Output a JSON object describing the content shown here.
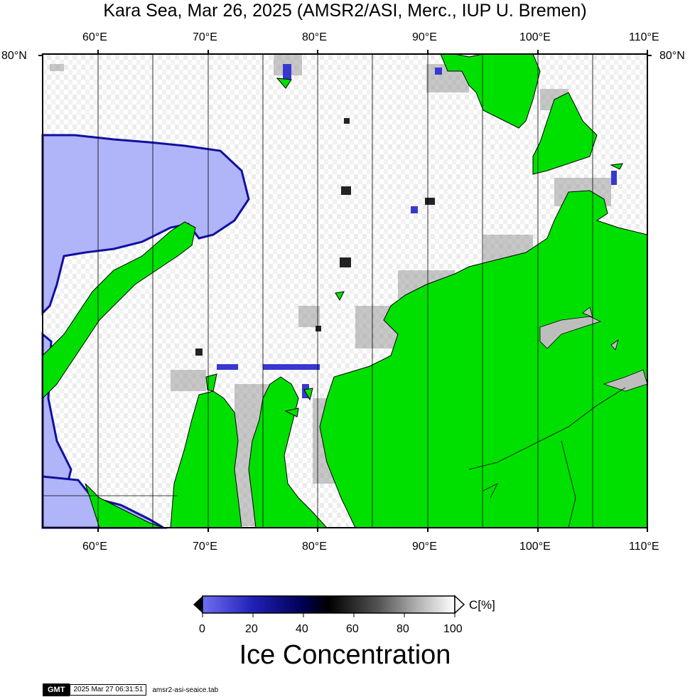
{
  "title": "Kara Sea, Mar 26, 2025 (AMSR2/ASI, Merc., IUP U. Bremen)",
  "map": {
    "lon_ticks": [
      "60°E",
      "70°E",
      "80°E",
      "90°E",
      "100°E",
      "110°E"
    ],
    "lat_label_left": "80°N",
    "lat_label_right": "80°N",
    "extent": {
      "lon": [
        55,
        110
      ],
      "lat_top": 80
    },
    "colors": {
      "open_water": "#b0b4f8",
      "land": "#00e000",
      "ice_full": "#ffffff",
      "gridline": "#000000"
    }
  },
  "colorbar": {
    "unit": "C[%]",
    "ticks": [
      "0",
      "20",
      "40",
      "60",
      "80",
      "100"
    ],
    "title": "Ice Concentration",
    "stops": [
      "#6f6ff0",
      "#2020b8",
      "#000050",
      "#000000",
      "#555555",
      "#b0b0b0",
      "#ffffff"
    ]
  },
  "footer": {
    "logo": "GMT",
    "timestamp": "2025 Mar 27 06:31:51",
    "filename": "amsr2-asi-seaice.tab"
  }
}
